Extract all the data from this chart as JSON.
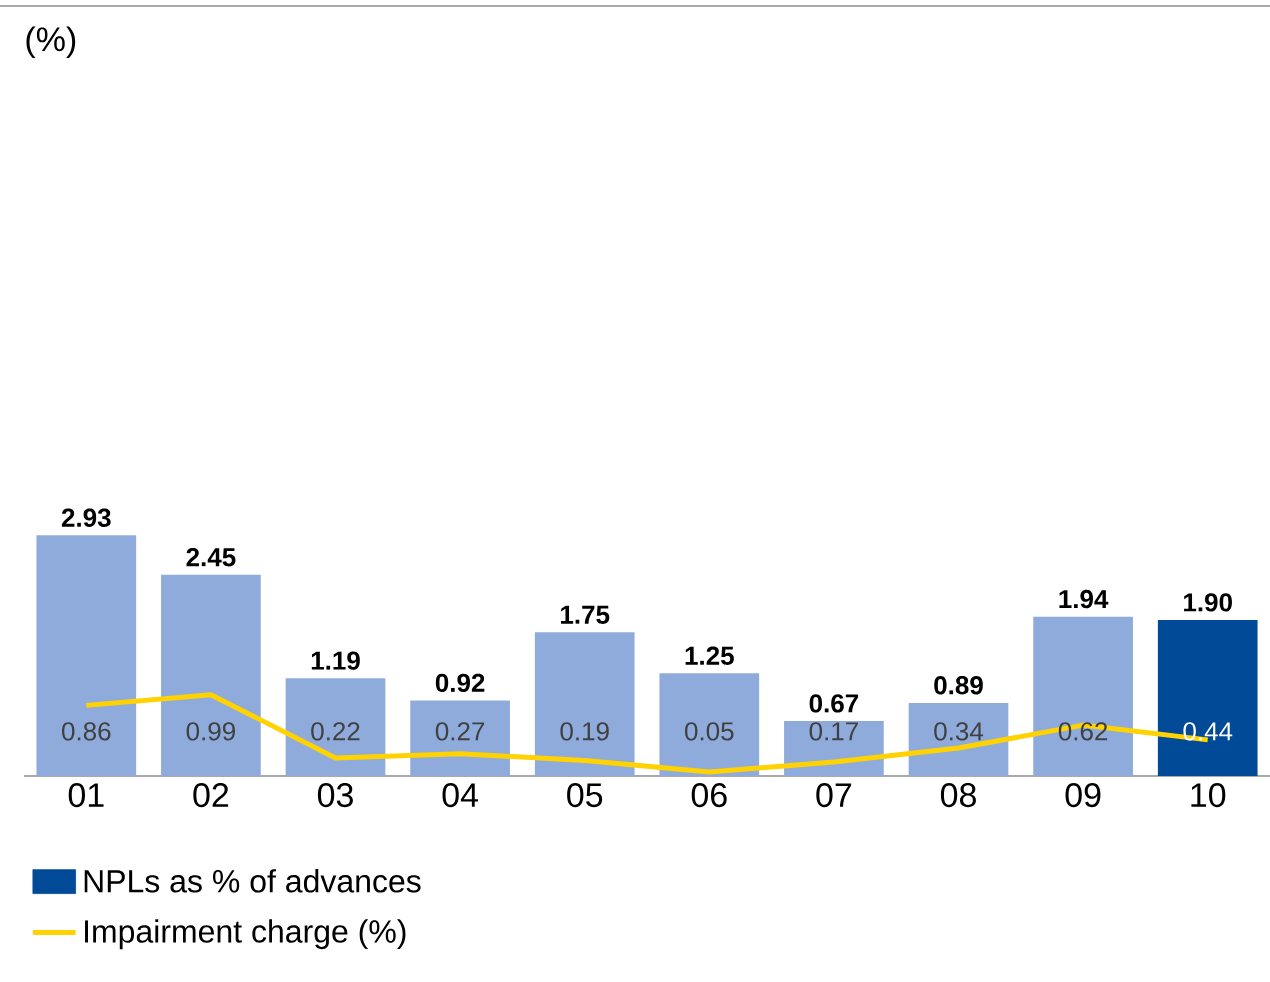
{
  "chart_data": {
    "type": "bar",
    "annotations": [
      "(%)"
    ],
    "categories": [
      "01",
      "02",
      "03",
      "04",
      "05",
      "06",
      "07",
      "08",
      "09",
      "10"
    ],
    "legend": "bottom",
    "series": [
      {
        "name": "NPLs as % of advances",
        "color": "#004a98",
        "colors": [
          "#8fabdc",
          "#8fabdc",
          "#8fabdc",
          "#8fabdc",
          "#8fabdc",
          "#8fabdc",
          "#8fabdc",
          "#8fabdc",
          "#8fabdc",
          "#004a98"
        ],
        "values": [
          2.93,
          2.45,
          1.19,
          0.92,
          1.75,
          1.25,
          0.67,
          0.89,
          1.94,
          1.9
        ],
        "value_labels": [
          "2.93",
          "2.45",
          "1.19",
          "0.92",
          "1.75",
          "1.25",
          "0.67",
          "0.89",
          "1.94",
          "1.90"
        ]
      },
      {
        "name": "Impairment charge (%)",
        "type": "line",
        "color": "#ffd200",
        "values": [
          0.86,
          0.99,
          0.22,
          0.27,
          0.19,
          0.05,
          0.17,
          0.34,
          0.62,
          0.44
        ],
        "value_labels": [
          "0.86",
          "0.99",
          "0.22",
          "0.27",
          "0.19",
          "0.05",
          "0.17",
          "0.34",
          "0.62",
          "0.44"
        ]
      }
    ]
  }
}
